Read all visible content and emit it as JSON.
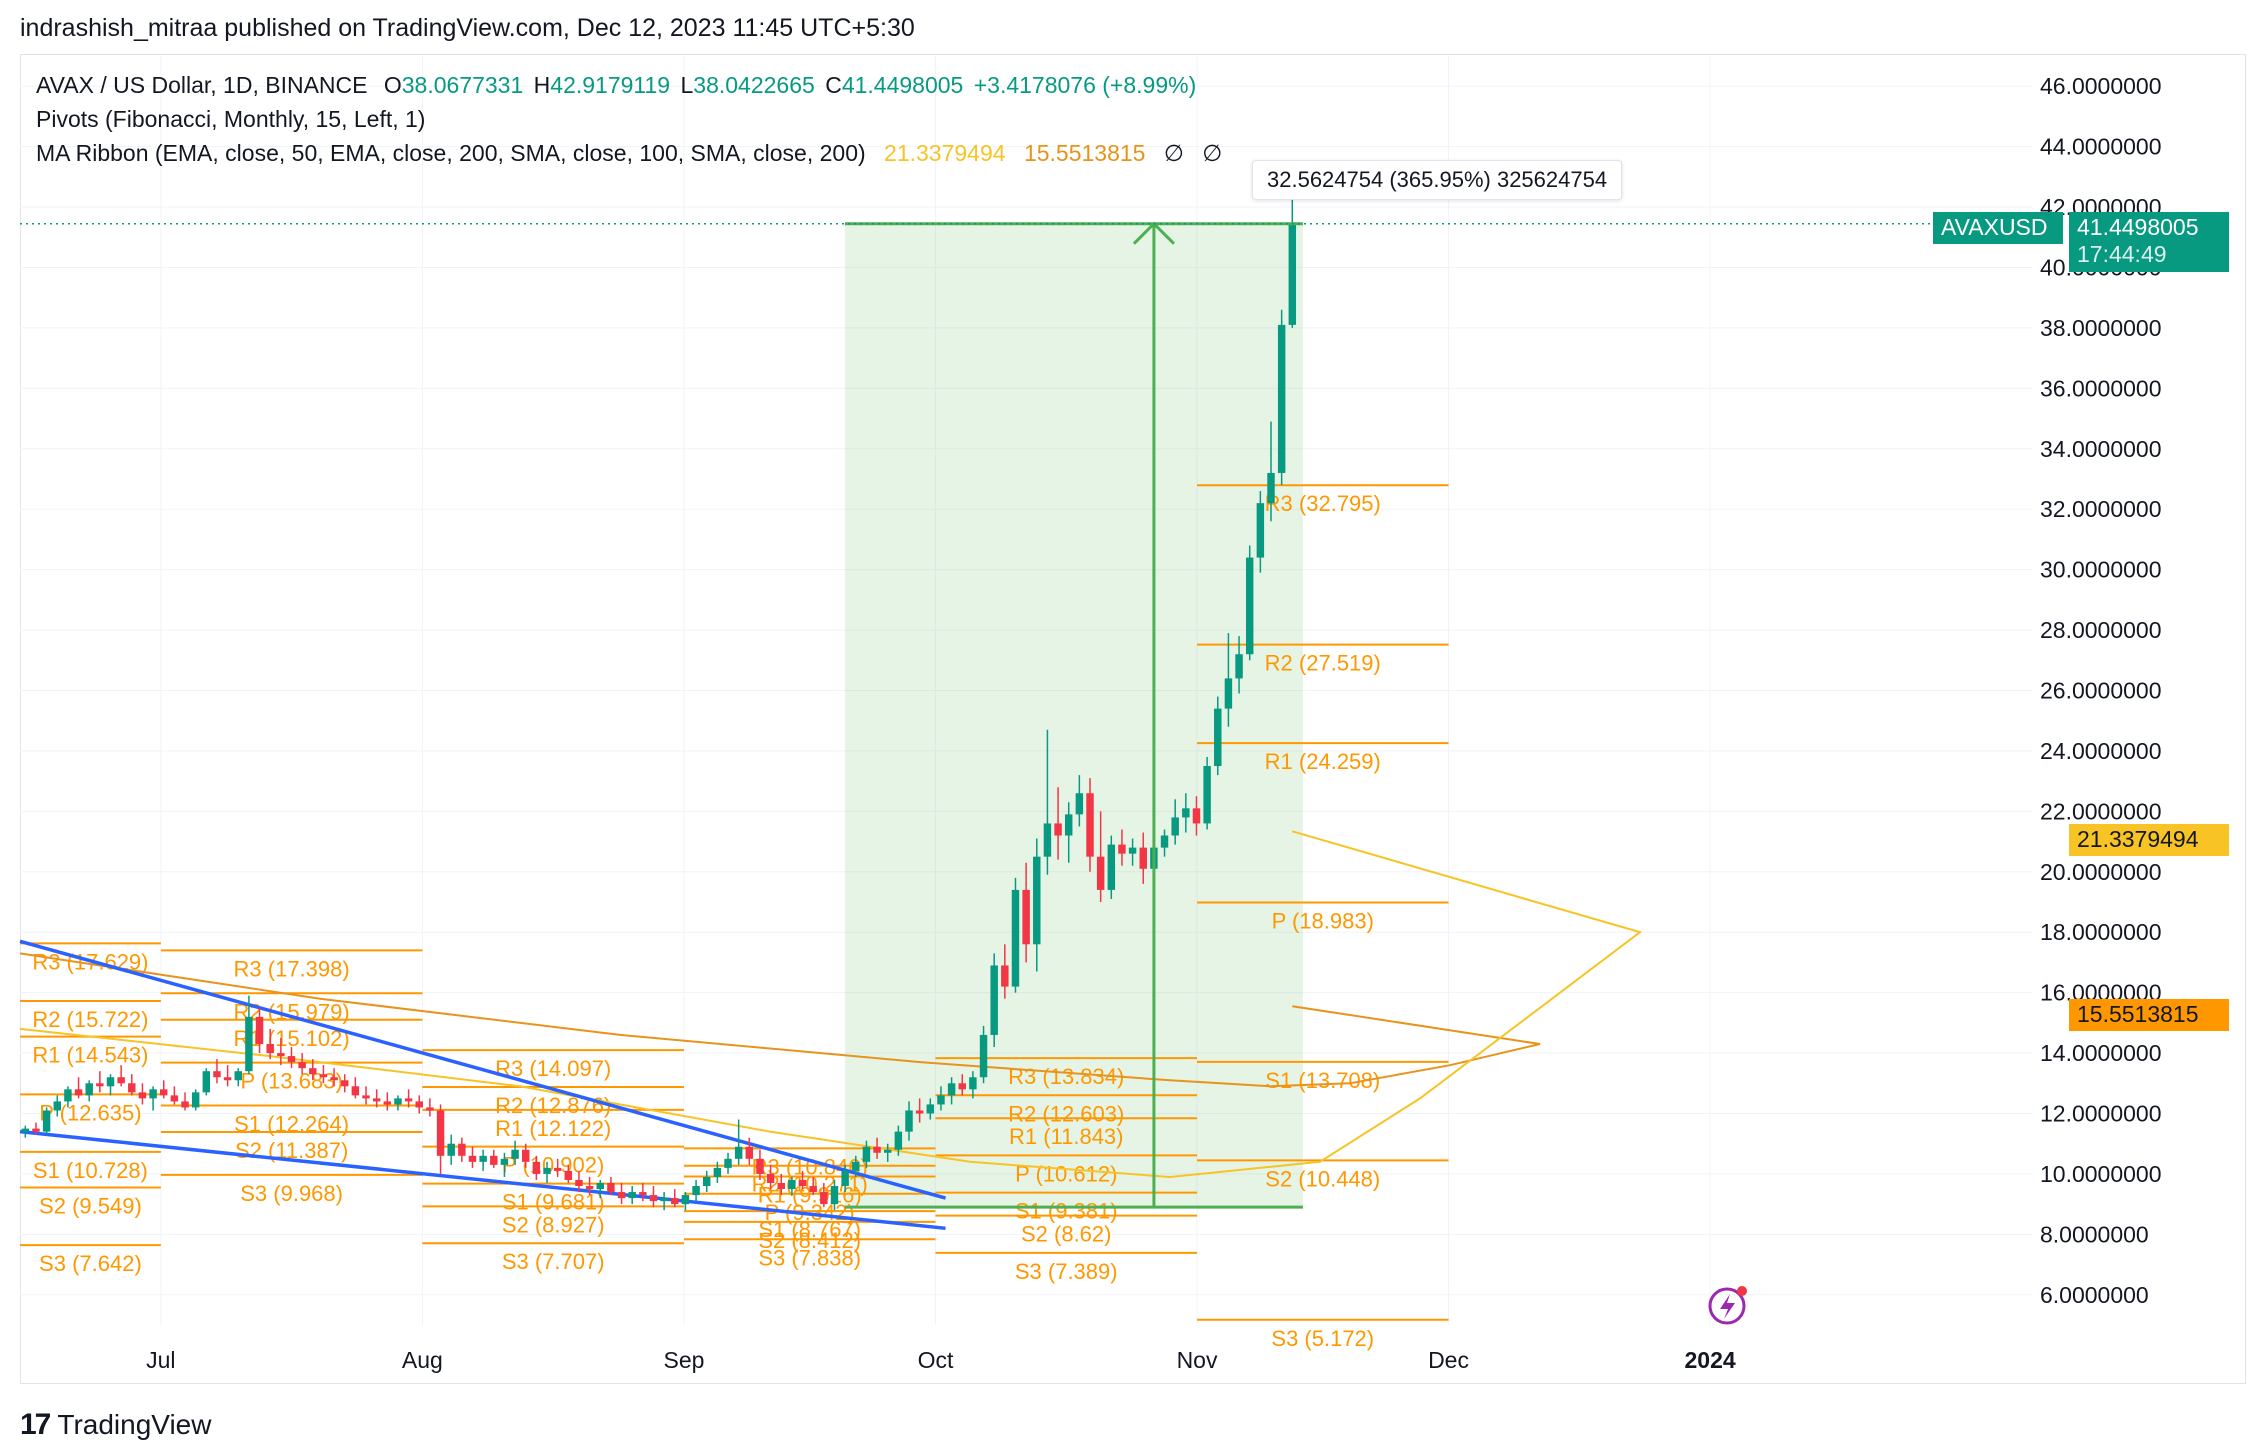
{
  "header": {
    "published": "indrashish_mitraa published on TradingView.com, Dec 12, 2023 11:45 UTC+5:30"
  },
  "legend": {
    "symbol": "AVAX / US Dollar, 1D, BINANCE",
    "o_label": "O",
    "o": "38.0677331",
    "h_label": "H",
    "h": "42.9179119",
    "l_label": "L",
    "l": "38.0422665",
    "c_label": "C",
    "c": "41.4498005",
    "change": "+3.4178076 (+8.99%)",
    "pivots": "Pivots (Fibonacci, Monthly, 15, Left, 1)",
    "ma_ribbon": "MA Ribbon (EMA, close, 50, EMA, close, 200, SMA, close, 100, SMA, close, 200)",
    "ma1": "21.3379494",
    "ma2": "15.5513815",
    "ma3": "∅",
    "ma4": "∅"
  },
  "measure_label": "32.5624754 (365.95%) 325624754",
  "price_tag": {
    "symbol": "AVAXUSD",
    "price": "41.4498005",
    "countdown": "17:44:49"
  },
  "ma_tags": [
    "21.3379494",
    "15.5513815"
  ],
  "brand": {
    "logo": "17",
    "name": "TradingView"
  },
  "colors": {
    "up": "#089981",
    "down": "#f23645",
    "pivot": "#ff9800",
    "trend": "#2962ff",
    "ma_fast": "#f7c325",
    "ma_slow": "#e8931b",
    "measure": "#4caf50"
  },
  "chart_data": {
    "type": "candlestick",
    "ylim": [
      5,
      47
    ],
    "y_ticks": [
      "6.0000000",
      "8.0000000",
      "10.0000000",
      "12.0000000",
      "14.0000000",
      "16.0000000",
      "18.0000000",
      "20.0000000",
      "22.0000000",
      "24.0000000",
      "26.0000000",
      "28.0000000",
      "30.0000000",
      "32.0000000",
      "34.0000000",
      "36.0000000",
      "38.0000000",
      "40.0000000",
      "42.0000000",
      "44.0000000",
      "46.0000000"
    ],
    "x_ticks": [
      "Jul",
      "Aug",
      "Sep",
      "Oct",
      "Nov",
      "Dec",
      "2024"
    ],
    "pivots": [
      {
        "levels": [
          [
            "R3 (17.629)",
            17.629
          ],
          [
            "R2 (15.722)",
            15.722
          ],
          [
            "R1 (14.543)",
            14.543
          ],
          [
            "P (12.635)",
            12.635
          ],
          [
            "S1 (10.728)",
            10.728
          ],
          [
            "S2 (9.549)",
            9.549
          ],
          [
            "S3 (7.642)",
            7.642
          ]
        ]
      },
      {
        "levels": [
          [
            "R3 (17.398)",
            17.398
          ],
          [
            "R2 (15.979)",
            15.979
          ],
          [
            "R1 (15.102)",
            15.102
          ],
          [
            "P (13.683)",
            13.683
          ],
          [
            "S1 (12.264)",
            12.264
          ],
          [
            "S2 (11.387)",
            11.387
          ],
          [
            "S3 (9.968)",
            9.968
          ]
        ]
      },
      {
        "levels": [
          [
            "R3 (14.097)",
            14.097
          ],
          [
            "R2 (12.876)",
            12.876
          ],
          [
            "R1 (12.122)",
            12.122
          ],
          [
            "P (10.902)",
            10.902
          ],
          [
            "S1 (9.681)",
            9.681
          ],
          [
            "S2 (8.927)",
            8.927
          ],
          [
            "S3 (7.707)",
            7.707
          ]
        ]
      },
      {
        "levels": [
          [
            "R3 (10.846)",
            10.846
          ],
          [
            "R2 (10.271)",
            10.271
          ],
          [
            "R1 (9.916)",
            9.916
          ],
          [
            "P (9.342)",
            9.342
          ],
          [
            "S1 (8.767)",
            8.767
          ],
          [
            "S2 (8.412)",
            8.412
          ],
          [
            "S3 (7.838)",
            7.838
          ]
        ]
      },
      {
        "levels": [
          [
            "R3 (13.834)",
            13.834
          ],
          [
            "R2 (12.603)",
            12.603
          ],
          [
            "R1 (11.843)",
            11.843
          ],
          [
            "P (10.612)",
            10.612
          ],
          [
            "S1 (9.381)",
            9.381
          ],
          [
            "S2 (8.62)",
            8.62
          ],
          [
            "S3 (7.389)",
            7.389
          ]
        ]
      },
      {
        "levels": [
          [
            "R3 (32.795)",
            32.795
          ],
          [
            "R2 (27.519)",
            27.519
          ],
          [
            "R1 (24.259)",
            24.259
          ],
          [
            "P (18.983)",
            18.983
          ],
          [
            "S1 (13.708)",
            13.708
          ],
          [
            "S2 (10.448)",
            10.448
          ],
          [
            "S3 (5.172)",
            5.172
          ]
        ]
      }
    ],
    "measure": {
      "from": 8.9,
      "to": 41.45
    },
    "trendlines": [
      {
        "from": 17.7,
        "to": 9.2
      },
      {
        "from": 11.4,
        "to": 8.2
      }
    ],
    "ema50_end": 21.34,
    "ema200_end": 15.55,
    "candles": [
      [
        11.4,
        11.6,
        11.2,
        11.5
      ],
      [
        11.5,
        11.7,
        11.3,
        11.4
      ],
      [
        11.4,
        12.2,
        11.3,
        12.1
      ],
      [
        12.1,
        12.6,
        11.9,
        12.4
      ],
      [
        12.4,
        12.9,
        12.2,
        12.8
      ],
      [
        12.8,
        13.2,
        12.5,
        12.6
      ],
      [
        12.6,
        13.1,
        12.4,
        13.0
      ],
      [
        13.0,
        13.4,
        12.7,
        12.9
      ],
      [
        12.9,
        13.3,
        12.6,
        13.2
      ],
      [
        13.2,
        13.6,
        12.9,
        13.0
      ],
      [
        13.0,
        13.3,
        12.6,
        12.7
      ],
      [
        12.7,
        13.0,
        12.3,
        12.5
      ],
      [
        12.5,
        12.9,
        12.1,
        12.8
      ],
      [
        12.8,
        13.1,
        12.5,
        12.6
      ],
      [
        12.6,
        12.9,
        12.3,
        12.4
      ],
      [
        12.4,
        12.7,
        12.1,
        12.2
      ],
      [
        12.2,
        12.8,
        12.1,
        12.7
      ],
      [
        12.7,
        13.5,
        12.6,
        13.4
      ],
      [
        13.4,
        13.8,
        13.0,
        13.2
      ],
      [
        13.2,
        13.6,
        12.9,
        13.1
      ],
      [
        13.1,
        13.5,
        12.9,
        13.4
      ],
      [
        13.4,
        15.9,
        13.3,
        15.2
      ],
      [
        15.2,
        15.5,
        14.0,
        14.3
      ],
      [
        14.3,
        14.8,
        13.8,
        14.0
      ],
      [
        14.0,
        14.5,
        13.6,
        13.9
      ],
      [
        13.9,
        14.2,
        13.5,
        13.7
      ],
      [
        13.7,
        14.0,
        13.3,
        13.5
      ],
      [
        13.5,
        13.8,
        13.1,
        13.3
      ],
      [
        13.3,
        13.6,
        13.0,
        13.2
      ],
      [
        13.2,
        13.5,
        12.9,
        13.1
      ],
      [
        13.1,
        13.3,
        12.7,
        12.9
      ],
      [
        12.9,
        13.2,
        12.5,
        12.6
      ],
      [
        12.6,
        12.9,
        12.3,
        12.5
      ],
      [
        12.5,
        12.8,
        12.2,
        12.4
      ],
      [
        12.4,
        12.7,
        12.1,
        12.3
      ],
      [
        12.3,
        12.6,
        12.1,
        12.5
      ],
      [
        12.5,
        12.8,
        12.2,
        12.4
      ],
      [
        12.4,
        12.6,
        12.0,
        12.2
      ],
      [
        12.2,
        12.5,
        11.9,
        12.1
      ],
      [
        12.1,
        12.3,
        10.0,
        10.6
      ],
      [
        10.6,
        11.3,
        10.3,
        11.0
      ],
      [
        11.0,
        11.2,
        10.4,
        10.6
      ],
      [
        10.6,
        10.9,
        10.2,
        10.4
      ],
      [
        10.4,
        10.8,
        10.1,
        10.6
      ],
      [
        10.6,
        10.8,
        10.2,
        10.3
      ],
      [
        10.3,
        10.7,
        9.9,
        10.5
      ],
      [
        10.5,
        11.1,
        10.3,
        10.8
      ],
      [
        10.8,
        11.0,
        10.2,
        10.4
      ],
      [
        10.4,
        10.6,
        9.8,
        10.0
      ],
      [
        10.0,
        10.4,
        9.7,
        10.2
      ],
      [
        10.2,
        10.5,
        9.9,
        10.1
      ],
      [
        10.1,
        10.3,
        9.7,
        9.8
      ],
      [
        9.8,
        10.1,
        9.4,
        9.6
      ],
      [
        9.6,
        9.9,
        9.3,
        9.5
      ],
      [
        9.5,
        9.8,
        9.2,
        9.7
      ],
      [
        9.7,
        9.9,
        9.3,
        9.4
      ],
      [
        9.4,
        9.7,
        9.0,
        9.2
      ],
      [
        9.2,
        9.6,
        9.0,
        9.4
      ],
      [
        9.4,
        9.7,
        9.1,
        9.3
      ],
      [
        9.3,
        9.6,
        8.9,
        9.1
      ],
      [
        9.1,
        9.4,
        8.8,
        9.2
      ],
      [
        9.2,
        9.5,
        8.9,
        9.0
      ],
      [
        9.0,
        9.4,
        8.8,
        9.3
      ],
      [
        9.3,
        9.8,
        9.1,
        9.6
      ],
      [
        9.6,
        10.1,
        9.4,
        9.9
      ],
      [
        9.9,
        10.4,
        9.7,
        10.2
      ],
      [
        10.2,
        10.7,
        10.0,
        10.5
      ],
      [
        10.5,
        11.8,
        10.3,
        10.9
      ],
      [
        10.9,
        11.2,
        10.3,
        10.5
      ],
      [
        10.5,
        10.8,
        9.8,
        10.0
      ],
      [
        10.0,
        10.3,
        9.5,
        9.7
      ],
      [
        9.7,
        10.0,
        9.3,
        9.5
      ],
      [
        9.5,
        9.9,
        9.3,
        9.8
      ],
      [
        9.8,
        10.1,
        9.5,
        9.6
      ],
      [
        9.6,
        9.9,
        9.3,
        9.4
      ],
      [
        9.4,
        9.7,
        8.9,
        9.0
      ],
      [
        9.0,
        9.8,
        8.8,
        9.6
      ],
      [
        9.6,
        10.3,
        9.4,
        10.1
      ],
      [
        10.1,
        10.6,
        9.9,
        10.4
      ],
      [
        10.4,
        11.1,
        10.2,
        10.9
      ],
      [
        10.9,
        11.2,
        10.5,
        10.7
      ],
      [
        10.7,
        11.0,
        10.4,
        10.8
      ],
      [
        10.8,
        11.6,
        10.6,
        11.4
      ],
      [
        11.4,
        12.4,
        11.1,
        12.1
      ],
      [
        12.1,
        12.5,
        11.7,
        12.0
      ],
      [
        12.0,
        12.5,
        11.8,
        12.3
      ],
      [
        12.3,
        12.9,
        12.1,
        12.6
      ],
      [
        12.6,
        13.2,
        12.3,
        13.0
      ],
      [
        13.0,
        13.3,
        12.6,
        12.8
      ],
      [
        12.8,
        13.4,
        12.5,
        13.2
      ],
      [
        13.2,
        14.9,
        13.0,
        14.6
      ],
      [
        14.6,
        17.3,
        14.2,
        16.9
      ],
      [
        16.9,
        17.6,
        15.8,
        16.2
      ],
      [
        16.2,
        19.8,
        16.0,
        19.4
      ],
      [
        19.4,
        20.3,
        17.0,
        17.6
      ],
      [
        17.6,
        21.1,
        16.7,
        20.5
      ],
      [
        20.5,
        24.7,
        19.9,
        21.6
      ],
      [
        21.6,
        22.8,
        20.4,
        21.2
      ],
      [
        21.2,
        22.3,
        20.3,
        21.9
      ],
      [
        21.9,
        23.2,
        21.5,
        22.6
      ],
      [
        22.6,
        23.1,
        20.0,
        20.5
      ],
      [
        20.5,
        22.0,
        19.0,
        19.4
      ],
      [
        19.4,
        21.2,
        19.1,
        20.9
      ],
      [
        20.9,
        21.4,
        20.2,
        20.6
      ],
      [
        20.6,
        21.1,
        20.2,
        20.8
      ],
      [
        20.8,
        21.3,
        19.6,
        20.1
      ],
      [
        20.1,
        21.0,
        19.9,
        20.8
      ],
      [
        20.8,
        21.4,
        20.5,
        21.2
      ],
      [
        21.2,
        22.4,
        20.9,
        21.8
      ],
      [
        21.8,
        22.6,
        21.3,
        22.1
      ],
      [
        22.1,
        22.5,
        21.2,
        21.6
      ],
      [
        21.6,
        23.8,
        21.4,
        23.5
      ],
      [
        23.5,
        25.8,
        23.2,
        25.4
      ],
      [
        25.4,
        27.9,
        24.8,
        26.4
      ],
      [
        26.4,
        27.8,
        25.9,
        27.2
      ],
      [
        27.2,
        30.8,
        27.0,
        30.4
      ],
      [
        30.4,
        32.6,
        29.9,
        32.2
      ],
      [
        32.2,
        34.9,
        31.6,
        33.2
      ],
      [
        33.2,
        38.6,
        32.8,
        38.1
      ],
      [
        38.1,
        42.9,
        38.0,
        41.45
      ]
    ]
  }
}
